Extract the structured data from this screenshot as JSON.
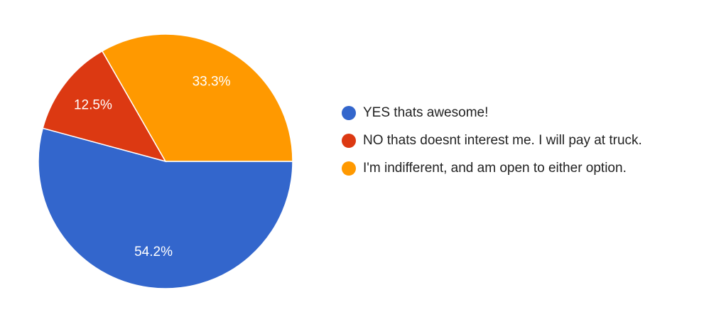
{
  "chart_data": {
    "type": "pie",
    "categories": [
      "YES thats awesome!",
      "NO thats doesnt interest me. I will pay at truck.",
      "I'm indifferent, and am open to either option."
    ],
    "values": [
      54.2,
      12.5,
      33.3
    ],
    "value_labels": [
      "54.2%",
      "12.5%",
      "33.3%"
    ],
    "colors": [
      "#3366cc",
      "#dc3912",
      "#ff9900"
    ],
    "legend": "right"
  }
}
